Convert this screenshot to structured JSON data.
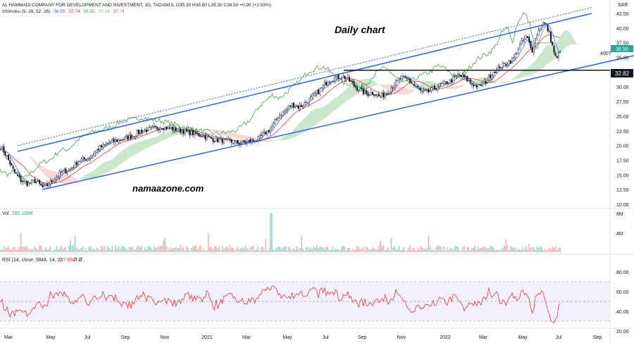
{
  "header": {
    "line1": "AL HAMMADI COMPANY FOR DEVELOPMENT AND INVESTMENT, 1D, TADAWUL  O35.30  H36.80  L35.30  C36.50  +0.90 (+2.53%)",
    "ichimoku_label": "Ichimoku (9, 26, 52, 26)",
    "ichimoku_values": [
      "36.55",
      "37.74",
      "36.50",
      "37.14",
      "37.74"
    ],
    "ichimoku_colors": [
      "#2962ff",
      "#d32f2f",
      "#43a047",
      "#66bb6a",
      "#ef5350"
    ]
  },
  "annotations": {
    "title": "Daily chart",
    "watermark": "namaazone.com",
    "level_label": "32.82",
    "side_label": "4007"
  },
  "volume": {
    "label": "Vol",
    "value": "285.106K",
    "axis": [
      "8M",
      "4M"
    ]
  },
  "rsi": {
    "label": "RSI (14, close, SMA, 14, 2)",
    "value": "47.85",
    "extra": "Ø  Ø",
    "axis": [
      "80.00",
      "60.00",
      "40.00",
      "20.00"
    ]
  },
  "colors": {
    "bull": "#26a69a",
    "bear": "#ef5350",
    "channel": "#2962ff",
    "tenkan": "#2962ff",
    "kijun": "#e53935",
    "lagging": "#43a047",
    "cloud_bull": "#c8e6c9",
    "cloud_bear": "#f8d7d7",
    "rsi": "#e53935"
  },
  "chart_data": {
    "type": "candlestick",
    "title": "",
    "currency": "SAR",
    "x_months": [
      "Mar",
      "May",
      "Jul",
      "Sep",
      "Nov",
      "2021",
      "Mar",
      "May",
      "Jul",
      "Sep",
      "Nov",
      "2022",
      "Mar",
      "May",
      "Jul",
      "Sep"
    ],
    "price_ticks": [
      "42.50",
      "40.00",
      "37.50",
      "35.00",
      "32.50",
      "30.00",
      "27.50",
      "25.00",
      "22.50",
      "20.00",
      "17.50",
      "15.00",
      "12.50",
      "10.00"
    ],
    "price_range": [
      10,
      42.5
    ],
    "last_close": 36.5,
    "support_level": 32.82,
    "price_path": [
      [
        0,
        20.0
      ],
      [
        8,
        18.5
      ],
      [
        20,
        15.5
      ],
      [
        30,
        14.0
      ],
      [
        40,
        13.5
      ],
      [
        50,
        14.0
      ],
      [
        62,
        12.7
      ],
      [
        72,
        13.8
      ],
      [
        88,
        15.5
      ],
      [
        100,
        16.0
      ],
      [
        112,
        17.5
      ],
      [
        125,
        17.8
      ],
      [
        140,
        19.5
      ],
      [
        155,
        20.5
      ],
      [
        170,
        21.0
      ],
      [
        185,
        21.5
      ],
      [
        200,
        22.5
      ],
      [
        215,
        22.8
      ],
      [
        230,
        23.2
      ],
      [
        245,
        22.8
      ],
      [
        260,
        22.5
      ],
      [
        275,
        22.0
      ],
      [
        290,
        21.6
      ],
      [
        305,
        21.0
      ],
      [
        320,
        20.8
      ],
      [
        335,
        20.4
      ],
      [
        350,
        20.6
      ],
      [
        365,
        21.0
      ],
      [
        375,
        22.0
      ],
      [
        385,
        23.0
      ],
      [
        395,
        25.0
      ],
      [
        405,
        26.0
      ],
      [
        415,
        27.0
      ],
      [
        425,
        26.5
      ],
      [
        435,
        27.5
      ],
      [
        445,
        28.5
      ],
      [
        455,
        29.5
      ],
      [
        465,
        31.0
      ],
      [
        475,
        31.5
      ],
      [
        485,
        31.8
      ],
      [
        492,
        31.5
      ],
      [
        500,
        30.5
      ],
      [
        510,
        29.5
      ],
      [
        520,
        28.8
      ],
      [
        530,
        29.0
      ],
      [
        540,
        28.2
      ],
      [
        550,
        29.2
      ],
      [
        560,
        30.5
      ],
      [
        570,
        31.5
      ],
      [
        580,
        31.2
      ],
      [
        590,
        30.0
      ],
      [
        600,
        29.0
      ],
      [
        610,
        29.2
      ],
      [
        620,
        30.0
      ],
      [
        630,
        30.5
      ],
      [
        640,
        31.0
      ],
      [
        650,
        32.0
      ],
      [
        660,
        31.5
      ],
      [
        670,
        30.5
      ],
      [
        680,
        30.0
      ],
      [
        690,
        31.0
      ],
      [
        700,
        32.5
      ],
      [
        710,
        33.5
      ],
      [
        720,
        34.0
      ],
      [
        730,
        35.0
      ],
      [
        740,
        37.5
      ],
      [
        748,
        38.5
      ],
      [
        755,
        36.0
      ],
      [
        762,
        39.0
      ],
      [
        770,
        41.0
      ],
      [
        775,
        40.5
      ],
      [
        780,
        39.0
      ],
      [
        785,
        36.5
      ],
      [
        790,
        34.5
      ],
      [
        796,
        36.5
      ]
    ],
    "channel_upper": [
      [
        25,
        19.0
      ],
      [
        840,
        42.5
      ]
    ],
    "channel_lower": [
      [
        60,
        12.5
      ],
      [
        900,
        35.3
      ]
    ],
    "channel_dotted": [
      [
        25,
        20.0
      ],
      [
        840,
        43.5
      ]
    ],
    "volume_axis": [
      "8M",
      "4M"
    ],
    "rsi_axis": [
      "80.00",
      "60.00",
      "40.00",
      "20.00"
    ],
    "rsi_bands": [
      70,
      50,
      30
    ],
    "rsi_last": 47.85
  }
}
